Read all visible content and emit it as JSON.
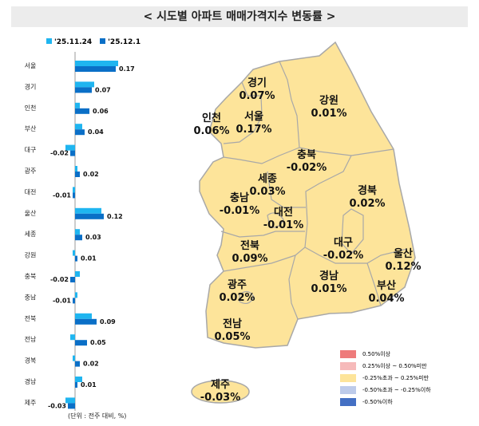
{
  "title": "< 시도별 아파트 매매가격지수 변동률 >",
  "colors": {
    "prev": "#1fb5f0",
    "curr": "#0a6fc7",
    "map_fill": "#fde49a",
    "map_border": "#a8a8a8"
  },
  "chart_data": {
    "type": "bar",
    "orientation": "horizontal",
    "categories": [
      "서울",
      "경기",
      "인천",
      "부산",
      "대구",
      "광주",
      "대전",
      "울산",
      "세종",
      "강원",
      "충북",
      "충남",
      "전북",
      "전남",
      "경북",
      "경남",
      "제주"
    ],
    "series": [
      {
        "name": "'25.11.24",
        "values": [
          0.18,
          0.08,
          0.02,
          0.03,
          -0.04,
          0.01,
          -0.01,
          0.11,
          0.02,
          -0.01,
          0.02,
          0.01,
          0.07,
          -0.02,
          -0.01,
          0.03,
          -0.04
        ]
      },
      {
        "name": "'25.12.1",
        "values": [
          0.17,
          0.07,
          0.06,
          0.04,
          -0.02,
          0.02,
          -0.01,
          0.12,
          0.03,
          0.01,
          -0.02,
          -0.01,
          0.09,
          0.05,
          0.02,
          0.01,
          -0.03
        ]
      }
    ],
    "data_labels": [
      "0.17",
      "0.07",
      "0.06",
      "0.04",
      "-0.02",
      "0.02",
      "-0.01",
      "0.12",
      "0.03",
      "0.01",
      "-0.02",
      "-0.01",
      "0.09",
      "0.05",
      "0.02",
      "0.01",
      "-0.03"
    ],
    "unit_note": "(단위 : 전주 대비, %)"
  },
  "map": {
    "regions": [
      {
        "name": "경기",
        "value": "0.07%"
      },
      {
        "name": "강원",
        "value": "0.01%"
      },
      {
        "name": "인천",
        "value": "0.06%"
      },
      {
        "name": "서울",
        "value": "0.17%"
      },
      {
        "name": "충북",
        "value": "-0.02%"
      },
      {
        "name": "세종",
        "value": "0.03%"
      },
      {
        "name": "경북",
        "value": "0.02%"
      },
      {
        "name": "충남",
        "value": "-0.01%"
      },
      {
        "name": "대전",
        "value": "-0.01%"
      },
      {
        "name": "전북",
        "value": "0.09%"
      },
      {
        "name": "대구",
        "value": "-0.02%"
      },
      {
        "name": "울산",
        "value": "0.12%"
      },
      {
        "name": "경남",
        "value": "0.01%"
      },
      {
        "name": "광주",
        "value": "0.02%"
      },
      {
        "name": "부산",
        "value": "0.04%"
      },
      {
        "name": "전남",
        "value": "0.05%"
      },
      {
        "name": "제주",
        "value": "-0.03%"
      }
    ],
    "legend": [
      {
        "label": "0.50%이상",
        "color": "#ee7b7b"
      },
      {
        "label": "0.25%이상 ~ 0.50%미만",
        "color": "#f6baba"
      },
      {
        "label": "-0.25%초과 ~ 0.25%미만",
        "color": "#fde49a"
      },
      {
        "label": "-0.50%초과 ~ -0.25%이하",
        "color": "#bdcbea"
      },
      {
        "label": "-0.50%이하",
        "color": "#4470c4"
      }
    ]
  }
}
